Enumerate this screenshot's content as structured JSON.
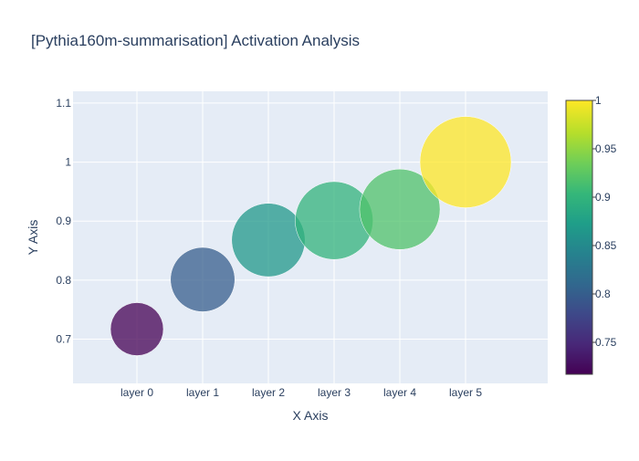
{
  "chart_data": {
    "type": "scatter",
    "title": "[Pythia160m-summarisation] Activation Analysis",
    "xlabel": "X Axis",
    "ylabel": "Y Axis",
    "categories": [
      "layer 0",
      "layer 1",
      "layer 2",
      "layer 3",
      "layer 4",
      "layer 5"
    ],
    "values": [
      0.717,
      0.801,
      0.868,
      0.901,
      0.92,
      1.0
    ],
    "ylim": [
      0.625,
      1.12
    ],
    "yticks": [
      0.7,
      0.8,
      0.9,
      1,
      1.1
    ],
    "grid": true,
    "colorbar": {
      "range": [
        0.717,
        1.0
      ],
      "ticks": [
        0.75,
        0.8,
        0.85,
        0.9,
        0.95,
        1
      ],
      "colorscale": "viridis"
    },
    "marker_opacity": 0.75
  },
  "colors": {
    "plot_bg": "#e5ecf6",
    "grid": "#ffffff",
    "text": "#2a3f5f"
  }
}
